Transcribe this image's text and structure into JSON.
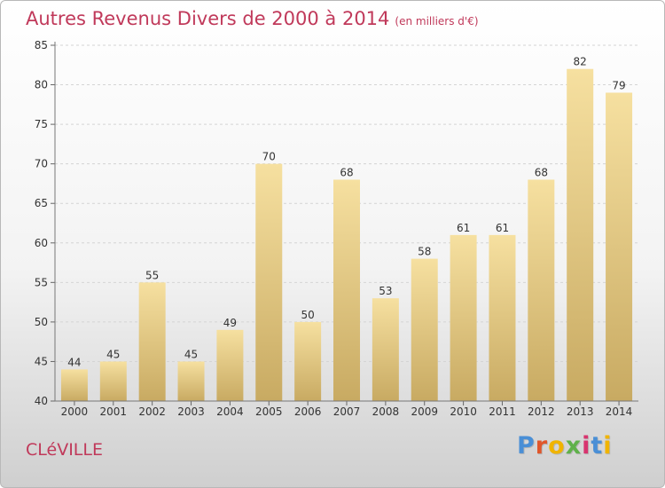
{
  "title": "Autres Revenus Divers de 2000 à 2014",
  "unit": "(en milliers d'€)",
  "place": "CLéVILLE",
  "brand": "Proxiti",
  "colors": {
    "title": "#c0395a",
    "bar_light": "#f5dd9a",
    "bar_dark": "#c9ac64",
    "logo": [
      "#4a8fd6",
      "#e0562a",
      "#f0b400",
      "#5fb14a",
      "#d8346f",
      "#4a8fd6",
      "#f0b400"
    ]
  },
  "chart_data": {
    "type": "bar",
    "categories": [
      "2000",
      "2001",
      "2002",
      "2003",
      "2004",
      "2005",
      "2006",
      "2007",
      "2008",
      "2009",
      "2010",
      "2011",
      "2012",
      "2013",
      "2014"
    ],
    "values": [
      44,
      45,
      55,
      45,
      49,
      70,
      50,
      68,
      53,
      58,
      61,
      61,
      68,
      82,
      79
    ],
    "ylim": [
      40,
      85
    ],
    "yticks": [
      40,
      45,
      50,
      55,
      60,
      65,
      70,
      75,
      80,
      85
    ],
    "grid": true
  }
}
